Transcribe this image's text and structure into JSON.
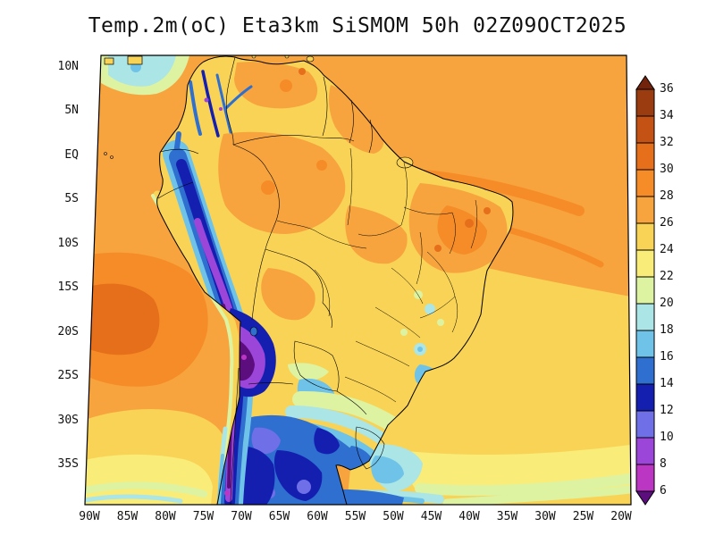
{
  "title": "Temp.2m(oC) Eta3km SiSMOM 50h 02Z09OCT2025",
  "axes": {
    "lat_labels": [
      "10N",
      "5N",
      "EQ",
      "5S",
      "10S",
      "15S",
      "20S",
      "25S",
      "30S",
      "35S"
    ],
    "lon_labels": [
      "90W",
      "85W",
      "80W",
      "75W",
      "70W",
      "65W",
      "60W",
      "55W",
      "50W",
      "45W",
      "40W",
      "35W",
      "30W",
      "25W",
      "20W"
    ]
  },
  "colorbar": {
    "levels": [
      "36",
      "34",
      "32",
      "30",
      "28",
      "26",
      "24",
      "22",
      "20",
      "18",
      "16",
      "14",
      "12",
      "10",
      "8",
      "6"
    ],
    "colors": [
      "#73230B",
      "#9A3B10",
      "#C35214",
      "#E56F1A",
      "#F68C28",
      "#F7A43E",
      "#F9D355",
      "#F9EC79",
      "#DDF3A2",
      "#ABE5E5",
      "#6FC3E8",
      "#2E6FD0",
      "#141FB0",
      "#6F6FE8",
      "#9B45D9",
      "#BC36C4",
      "#5C0E7E"
    ]
  },
  "chart_data": {
    "type": "heatmap",
    "title": "Temp.2m(oC) Eta3km SiSMOM 50h 02Z09OCT2025",
    "variable": "Temp.2m(oC)",
    "model": "Eta3km SiSMOM",
    "forecast_hour": "50h",
    "valid_time": "02Z09OCT2025",
    "x_tick_labels": [
      "90W",
      "85W",
      "80W",
      "75W",
      "70W",
      "65W",
      "60W",
      "55W",
      "50W",
      "45W",
      "40W",
      "35W",
      "30W",
      "25W",
      "20W"
    ],
    "y_tick_labels": [
      "10N",
      "5N",
      "EQ",
      "5S",
      "10S",
      "15S",
      "20S",
      "25S",
      "30S",
      "35S"
    ],
    "colorbar_levels": [
      6,
      8,
      10,
      12,
      14,
      16,
      18,
      20,
      22,
      24,
      26,
      28,
      30,
      32,
      34,
      36
    ],
    "colorbar_colors_top_to_bottom": [
      "#73230B",
      "#9A3B10",
      "#C35214",
      "#E56F1A",
      "#F68C28",
      "#F7A43E",
      "#F9D355",
      "#F9EC79",
      "#DDF3A2",
      "#ABE5E5",
      "#6FC3E8",
      "#2E6FD0",
      "#141FB0",
      "#6F6FE8",
      "#9B45D9",
      "#BC36C4",
      "#5C0E7E"
    ],
    "legend_position": "right",
    "grid": false
  }
}
